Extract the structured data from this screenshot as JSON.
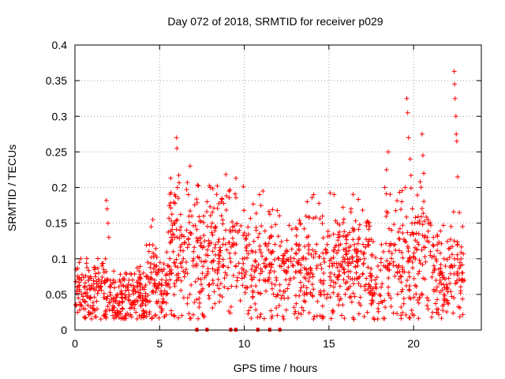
{
  "chart_data": {
    "type": "scatter",
    "title": "Day 072 of 2018, SRMTID for receiver p029",
    "xlabel": "GPS time / hours",
    "ylabel": "SRMTID / TECUs",
    "xlim": [
      0,
      24
    ],
    "ylim": [
      0,
      0.4
    ],
    "xticks": [
      0,
      5,
      10,
      15,
      20
    ],
    "yticks": [
      0,
      0.05,
      0.1,
      0.15,
      0.2,
      0.25,
      0.3,
      0.35,
      0.4
    ],
    "grid": true,
    "marker": "plus",
    "color": "#ff0000",
    "series": [
      {
        "name": "SRMTID",
        "points": [
          [
            0.05,
            0.068
          ],
          [
            0.1,
            0.055
          ],
          [
            0.2,
            0.045
          ],
          [
            0.3,
            0.035
          ],
          [
            0.4,
            0.05
          ],
          [
            0.5,
            0.03
          ],
          [
            0.55,
            0.06
          ],
          [
            0.6,
            0.04
          ],
          [
            0.7,
            0.052
          ],
          [
            0.8,
            0.07
          ],
          [
            0.9,
            0.045
          ],
          [
            1.0,
            0.06
          ],
          [
            1.1,
            0.058
          ],
          [
            1.2,
            0.075
          ],
          [
            1.3,
            0.065
          ],
          [
            1.4,
            0.08
          ],
          [
            1.5,
            0.06
          ],
          [
            1.6,
            0.09
          ],
          [
            1.7,
            0.085
          ],
          [
            1.8,
            0.1
          ],
          [
            1.85,
            0.182
          ],
          [
            1.9,
            0.17
          ],
          [
            1.95,
            0.15
          ],
          [
            2.0,
            0.13
          ],
          [
            2.1,
            0.06
          ],
          [
            2.3,
            0.04
          ],
          [
            2.5,
            0.05
          ],
          [
            2.6,
            0.035
          ],
          [
            2.8,
            0.045
          ],
          [
            2.9,
            0.07
          ],
          [
            3.0,
            0.08
          ],
          [
            3.1,
            0.06
          ],
          [
            3.2,
            0.05
          ],
          [
            3.4,
            0.035
          ],
          [
            3.5,
            0.03
          ],
          [
            3.6,
            0.025
          ],
          [
            3.7,
            0.04
          ],
          [
            3.8,
            0.02
          ],
          [
            3.9,
            0.035
          ],
          [
            4.0,
            0.045
          ],
          [
            4.1,
            0.06
          ],
          [
            4.2,
            0.075
          ],
          [
            4.3,
            0.095
          ],
          [
            4.4,
            0.12
          ],
          [
            4.5,
            0.145
          ],
          [
            4.6,
            0.155
          ],
          [
            4.7,
            0.07
          ],
          [
            4.8,
            0.06
          ],
          [
            4.9,
            0.08
          ],
          [
            5.0,
            0.065
          ],
          [
            5.1,
            0.05
          ],
          [
            5.2,
            0.04
          ],
          [
            5.3,
            0.055
          ],
          [
            5.4,
            0.07
          ],
          [
            5.5,
            0.09
          ],
          [
            5.6,
            0.06
          ],
          [
            5.7,
            0.08
          ],
          [
            5.8,
            0.11
          ],
          [
            5.9,
            0.13
          ],
          [
            6.0,
            0.27
          ],
          [
            6.02,
            0.255
          ],
          [
            6.05,
            0.2
          ],
          [
            6.1,
            0.185
          ],
          [
            6.2,
            0.14
          ],
          [
            6.3,
            0.12
          ],
          [
            6.4,
            0.1
          ],
          [
            6.5,
            0.08
          ],
          [
            6.6,
            0.14
          ],
          [
            6.7,
            0.19
          ],
          [
            6.8,
            0.23
          ],
          [
            6.9,
            0.16
          ],
          [
            7.0,
            0.11
          ],
          [
            7.2,
            0.09
          ],
          [
            7.4,
            0.13
          ],
          [
            7.6,
            0.16
          ],
          [
            7.8,
            0.18
          ],
          [
            8.0,
            0.2
          ],
          [
            8.1,
            0.15
          ],
          [
            8.3,
            0.12
          ],
          [
            8.5,
            0.1
          ],
          [
            8.7,
            0.09
          ],
          [
            8.9,
            0.14
          ],
          [
            9.1,
            0.195
          ],
          [
            9.3,
            0.12
          ],
          [
            9.5,
            0.09
          ],
          [
            9.7,
            0.08
          ],
          [
            9.9,
            0.1
          ],
          [
            10.1,
            0.06
          ],
          [
            10.3,
            0.12
          ],
          [
            10.5,
            0.09
          ],
          [
            10.7,
            0.14
          ],
          [
            10.9,
            0.19
          ],
          [
            11.1,
            0.195
          ],
          [
            11.3,
            0.1
          ],
          [
            11.5,
            0.08
          ],
          [
            11.7,
            0.11
          ],
          [
            11.9,
            0.07
          ],
          [
            12.1,
            0.09
          ],
          [
            12.3,
            0.1
          ],
          [
            12.5,
            0.08
          ],
          [
            12.7,
            0.07
          ],
          [
            12.9,
            0.09
          ],
          [
            13.1,
            0.12
          ],
          [
            13.3,
            0.15
          ],
          [
            13.5,
            0.1
          ],
          [
            13.7,
            0.13
          ],
          [
            13.9,
            0.08
          ],
          [
            14.1,
            0.19
          ],
          [
            14.3,
            0.09
          ],
          [
            14.5,
            0.07
          ],
          [
            14.7,
            0.1
          ],
          [
            14.9,
            0.12
          ],
          [
            15.1,
            0.08
          ],
          [
            15.3,
            0.19
          ],
          [
            15.5,
            0.15
          ],
          [
            15.7,
            0.09
          ],
          [
            15.9,
            0.08
          ],
          [
            16.1,
            0.1
          ],
          [
            16.3,
            0.17
          ],
          [
            16.5,
            0.12
          ],
          [
            16.7,
            0.09
          ],
          [
            16.9,
            0.11
          ],
          [
            17.1,
            0.1
          ],
          [
            17.3,
            0.12
          ],
          [
            17.5,
            0.07
          ],
          [
            17.7,
            0.05
          ],
          [
            17.9,
            0.03
          ],
          [
            18.1,
            0.12
          ],
          [
            18.3,
            0.2
          ],
          [
            18.4,
            0.225
          ],
          [
            18.5,
            0.25
          ],
          [
            18.7,
            0.14
          ],
          [
            18.9,
            0.12
          ],
          [
            19.1,
            0.09
          ],
          [
            19.3,
            0.18
          ],
          [
            19.5,
            0.2
          ],
          [
            19.6,
            0.325
          ],
          [
            19.65,
            0.305
          ],
          [
            19.7,
            0.27
          ],
          [
            19.8,
            0.24
          ],
          [
            19.9,
            0.15
          ],
          [
            20.1,
            0.1
          ],
          [
            20.3,
            0.12
          ],
          [
            20.5,
            0.275
          ],
          [
            20.55,
            0.245
          ],
          [
            20.6,
            0.22
          ],
          [
            20.8,
            0.13
          ],
          [
            21.0,
            0.11
          ],
          [
            21.2,
            0.09
          ],
          [
            21.4,
            0.12
          ],
          [
            21.6,
            0.08
          ],
          [
            21.8,
            0.1
          ],
          [
            22.0,
            0.06
          ],
          [
            22.2,
            0.09
          ],
          [
            22.4,
            0.363
          ],
          [
            22.42,
            0.345
          ],
          [
            22.45,
            0.325
          ],
          [
            22.5,
            0.3
          ],
          [
            22.52,
            0.275
          ],
          [
            22.55,
            0.265
          ],
          [
            22.6,
            0.215
          ],
          [
            22.7,
            0.165
          ],
          [
            22.8,
            0.1
          ],
          [
            22.9,
            0.08
          ],
          [
            23.0,
            0.07
          ]
        ]
      }
    ],
    "gaps_marked_at_zero": [
      7.2,
      7.8,
      9.2,
      9.5,
      10.8,
      11.5,
      12.1
    ]
  }
}
